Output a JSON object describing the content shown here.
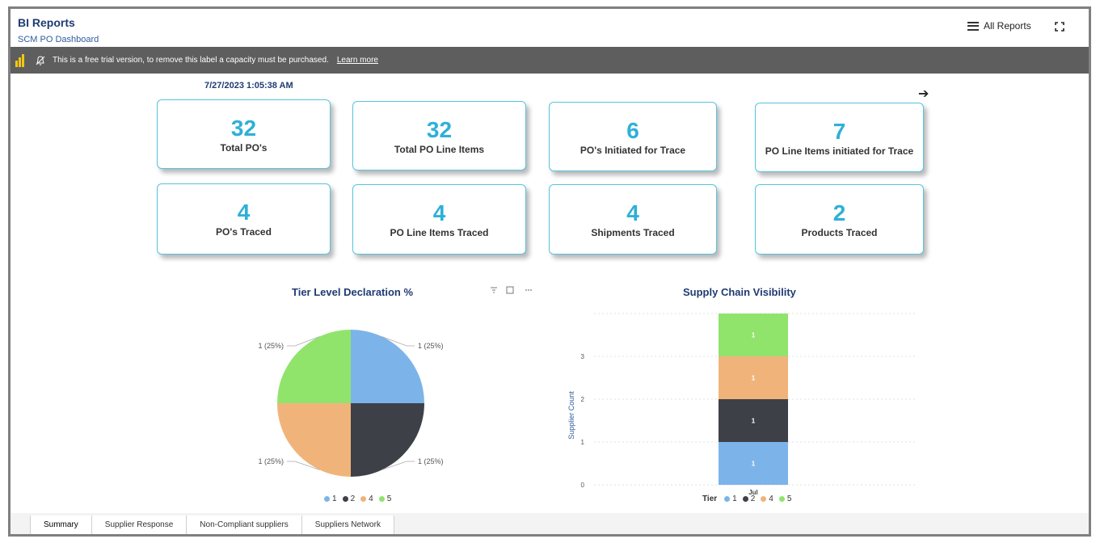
{
  "header": {
    "title": "BI Reports",
    "subtitle": "SCM PO Dashboard",
    "all_reports_label": "All Reports"
  },
  "trial_banner": {
    "message": "This is a free trial version, to remove this label a capacity must be purchased.",
    "link": "Learn more"
  },
  "timestamp": "7/27/2023 1:05:38 AM",
  "kpis": [
    {
      "value": "32",
      "label": "Total PO's"
    },
    {
      "value": "32",
      "label": "Total PO Line Items"
    },
    {
      "value": "6",
      "label": "PO's Initiated for Trace"
    },
    {
      "value": "7",
      "label": "PO Line Items initiated for Trace"
    },
    {
      "value": "4",
      "label": "PO's Traced"
    },
    {
      "value": "4",
      "label": "PO Line Items Traced"
    },
    {
      "value": "4",
      "label": "Shipments Traced"
    },
    {
      "value": "2",
      "label": "Products Traced"
    }
  ],
  "colors": {
    "tier1": "#7cb4ea",
    "tier2": "#3e4048",
    "tier4": "#f0b47b",
    "tier5": "#90e46c",
    "kpi_value": "#2eb0d8",
    "title": "#1f3b73"
  },
  "chart_data": [
    {
      "type": "pie",
      "title": "Tier Level Declaration %",
      "categories": [
        "1",
        "2",
        "4",
        "5"
      ],
      "values": [
        1,
        1,
        1,
        1
      ],
      "data_labels": [
        "1 (25%)",
        "1 (25%)",
        "1 (25%)",
        "1 (25%)"
      ],
      "legend": [
        "1",
        "2",
        "4",
        "5"
      ]
    },
    {
      "type": "bar",
      "stacked": true,
      "title": "Supply Chain Visibility",
      "categories": [
        "Jul"
      ],
      "series": [
        {
          "name": "1",
          "values": [
            1
          ],
          "label": "1"
        },
        {
          "name": "2",
          "values": [
            1
          ],
          "label": "1"
        },
        {
          "name": "4",
          "values": [
            1
          ],
          "label": "1"
        },
        {
          "name": "5",
          "values": [
            1
          ],
          "label": "1"
        }
      ],
      "xlabel": "",
      "ylabel": "Supplier Count",
      "ylim": [
        0,
        4
      ],
      "yticks": [
        "0",
        "1",
        "2",
        "3"
      ],
      "legend_title": "Tier",
      "legend": [
        "1",
        "2",
        "4",
        "5"
      ]
    }
  ],
  "tabs": [
    "Summary",
    "Supplier Response",
    "Non-Compliant suppliers",
    "Suppliers Network"
  ]
}
